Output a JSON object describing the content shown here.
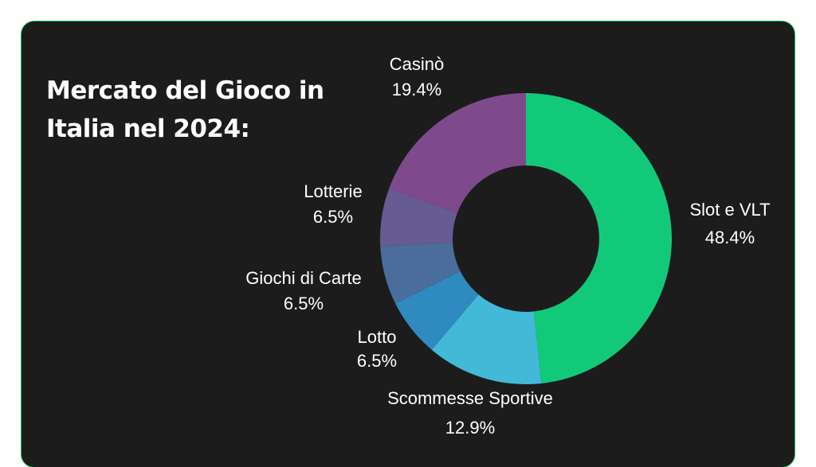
{
  "chart_data": {
    "type": "pie",
    "title": "Mercato del Gioco in Italia nel 2024:",
    "donut": true,
    "categories": [
      "Slot e VLT",
      "Scommesse Sportive",
      "Lotto",
      "Giochi di Carte",
      "Lotterie",
      "Casinò"
    ],
    "values": [
      48.4,
      12.9,
      6.5,
      6.5,
      6.5,
      19.4
    ],
    "value_labels": [
      "48.4%",
      "12.9%",
      "6.5%",
      "6.5%",
      "6.5%",
      "19.4%"
    ],
    "colors": [
      "#12c97a",
      "#42b9d6",
      "#2f8bbf",
      "#4a6d9c",
      "#665b92",
      "#7e4a8c"
    ],
    "start": "top",
    "direction": "clockwise"
  },
  "colors": {
    "card_background": "#1c1c1c",
    "card_border": "#18b85a",
    "text": "#ffffff"
  }
}
